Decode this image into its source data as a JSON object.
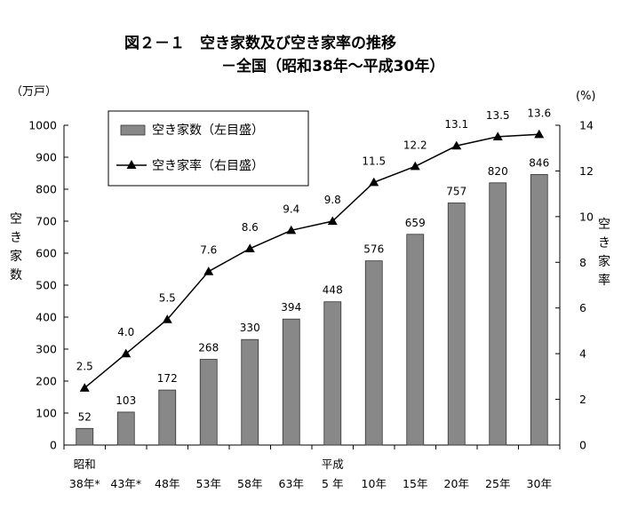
{
  "chart_data": {
    "type": "bar+line",
    "title_line1": "図２－１　空き家数及び空き家率の推移",
    "title_line2": "－全国（昭和38年～平成30年）",
    "left_unit": "（万戸）",
    "right_unit": "(%)",
    "left_axis_label": "空き家数",
    "right_axis_label": "空き家率",
    "categories": [
      "38年*",
      "43年*",
      "48年",
      "53年",
      "58年",
      "63年",
      "5 年",
      "10年",
      "15年",
      "20年",
      "25年",
      "30年"
    ],
    "era_labels": [
      {
        "text": "昭和",
        "category_index": 0
      },
      {
        "text": "平成",
        "category_index": 6
      }
    ],
    "series": [
      {
        "name": "空き家数（左目盛）",
        "type": "bar",
        "axis": "left",
        "color": "#888888",
        "values": [
          52,
          103,
          172,
          268,
          330,
          394,
          448,
          576,
          659,
          757,
          820,
          846
        ],
        "labels": [
          "52",
          "103",
          "172",
          "268",
          "330",
          "394",
          "448",
          "576",
          "659",
          "757",
          "820",
          "846"
        ]
      },
      {
        "name": "空き家率（右目盛）",
        "type": "line",
        "axis": "right",
        "color": "#000000",
        "values": [
          2.5,
          4.0,
          5.5,
          7.6,
          8.6,
          9.4,
          9.8,
          11.5,
          12.2,
          13.1,
          13.5,
          13.6
        ],
        "labels": [
          "2.5",
          "4.0",
          "5.5",
          "7.6",
          "8.6",
          "9.4",
          "9.8",
          "11.5",
          "12.2",
          "13.1",
          "13.5",
          "13.6"
        ]
      }
    ],
    "ylim_left": [
      0,
      1000
    ],
    "yticks_left": [
      0,
      100,
      200,
      300,
      400,
      500,
      600,
      700,
      800,
      900,
      1000
    ],
    "ylim_right": [
      0,
      14
    ],
    "yticks_right": [
      0,
      2,
      4,
      6,
      8,
      10,
      12,
      14
    ],
    "legend_position": "top-left",
    "grid": false
  }
}
